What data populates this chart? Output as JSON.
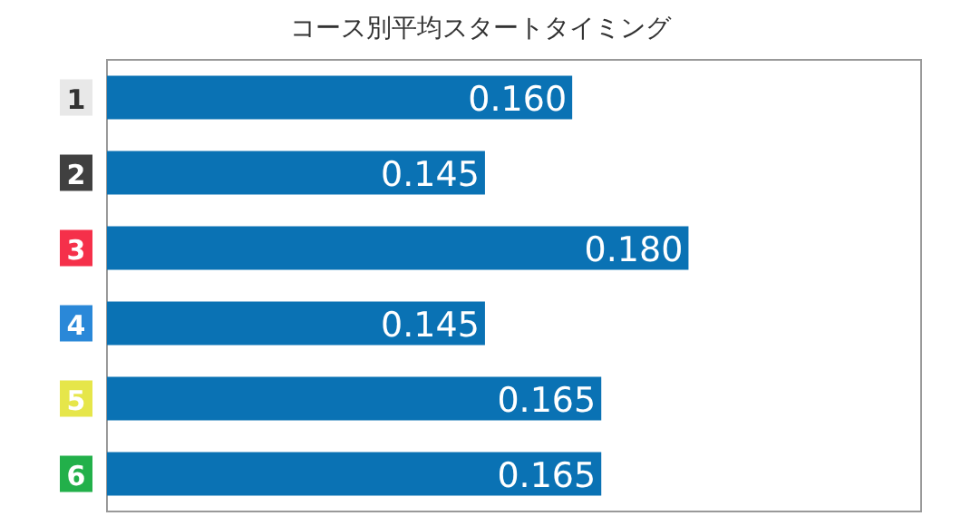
{
  "chart_data": {
    "type": "bar",
    "orientation": "horizontal",
    "title": "コース別平均スタートタイミング",
    "categories": [
      "1",
      "2",
      "3",
      "4",
      "5",
      "6"
    ],
    "values": [
      0.16,
      0.145,
      0.18,
      0.145,
      0.165,
      0.165
    ],
    "value_labels": [
      "0.160",
      "0.145",
      "0.180",
      "0.145",
      "0.165",
      "0.165"
    ],
    "color": "#0a72b4",
    "xlim": [
      0.08,
      0.22
    ],
    "tick_labels": "y"
  }
}
